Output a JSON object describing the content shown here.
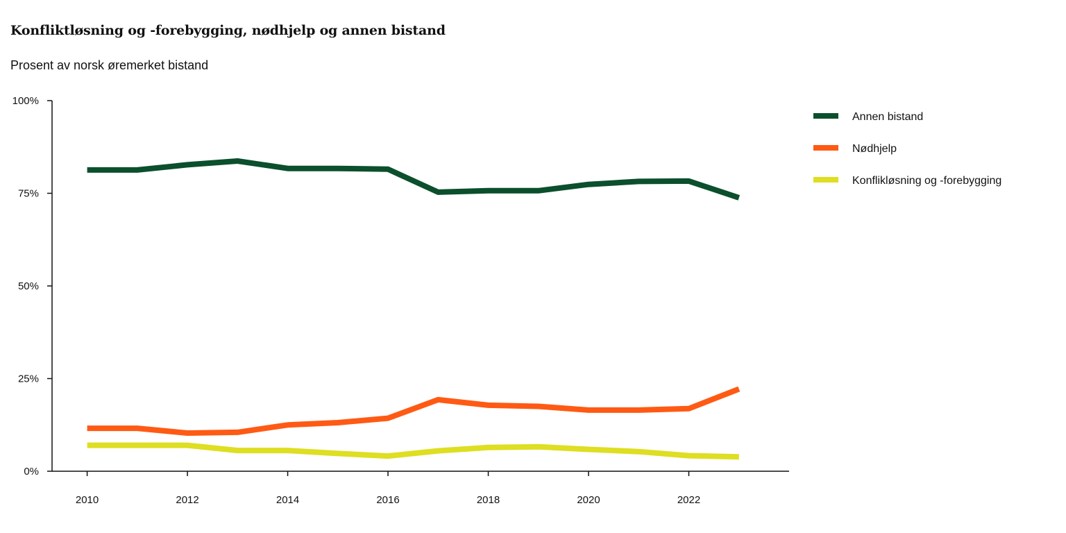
{
  "title": "Konfliktløsning og -forebygging, nødhjelp og annen bistand",
  "subtitle": "Prosent av norsk øremerket bistand",
  "chart_data": {
    "type": "line",
    "title": "Konfliktløsning og -forebygging, nødhjelp og annen bistand",
    "subtitle": "Prosent av norsk øremerket bistand",
    "x": [
      2010,
      2011,
      2012,
      2013,
      2014,
      2015,
      2016,
      2017,
      2018,
      2019,
      2020,
      2021,
      2022,
      2023
    ],
    "xticks": [
      "2010",
      "2012",
      "2014",
      "2016",
      "2018",
      "2020",
      "2022"
    ],
    "xlim": [
      2009.3,
      2024.0
    ],
    "ylim": [
      0,
      100
    ],
    "yticks": [
      "0%",
      "25%",
      "50%",
      "75%",
      "100%"
    ],
    "grid": false,
    "legend_position": "right",
    "series": [
      {
        "name": "Annen bistand",
        "color": "#0b4f2c",
        "values": [
          81.3,
          81.3,
          82.7,
          83.7,
          81.7,
          81.7,
          81.5,
          75.3,
          75.7,
          75.7,
          77.4,
          78.2,
          78.3,
          73.8
        ]
      },
      {
        "name": "Nødhjelp",
        "color": "#ff5a14",
        "values": [
          11.6,
          11.6,
          10.3,
          10.5,
          12.5,
          13.1,
          14.3,
          19.3,
          17.8,
          17.5,
          16.5,
          16.5,
          16.9,
          22.2
        ]
      },
      {
        "name": "Konflikløsning og -forebygging",
        "color": "#dede22",
        "values": [
          7.0,
          7.0,
          7.0,
          5.6,
          5.6,
          4.8,
          4.1,
          5.5,
          6.4,
          6.6,
          5.9,
          5.3,
          4.2,
          3.9
        ]
      }
    ]
  }
}
